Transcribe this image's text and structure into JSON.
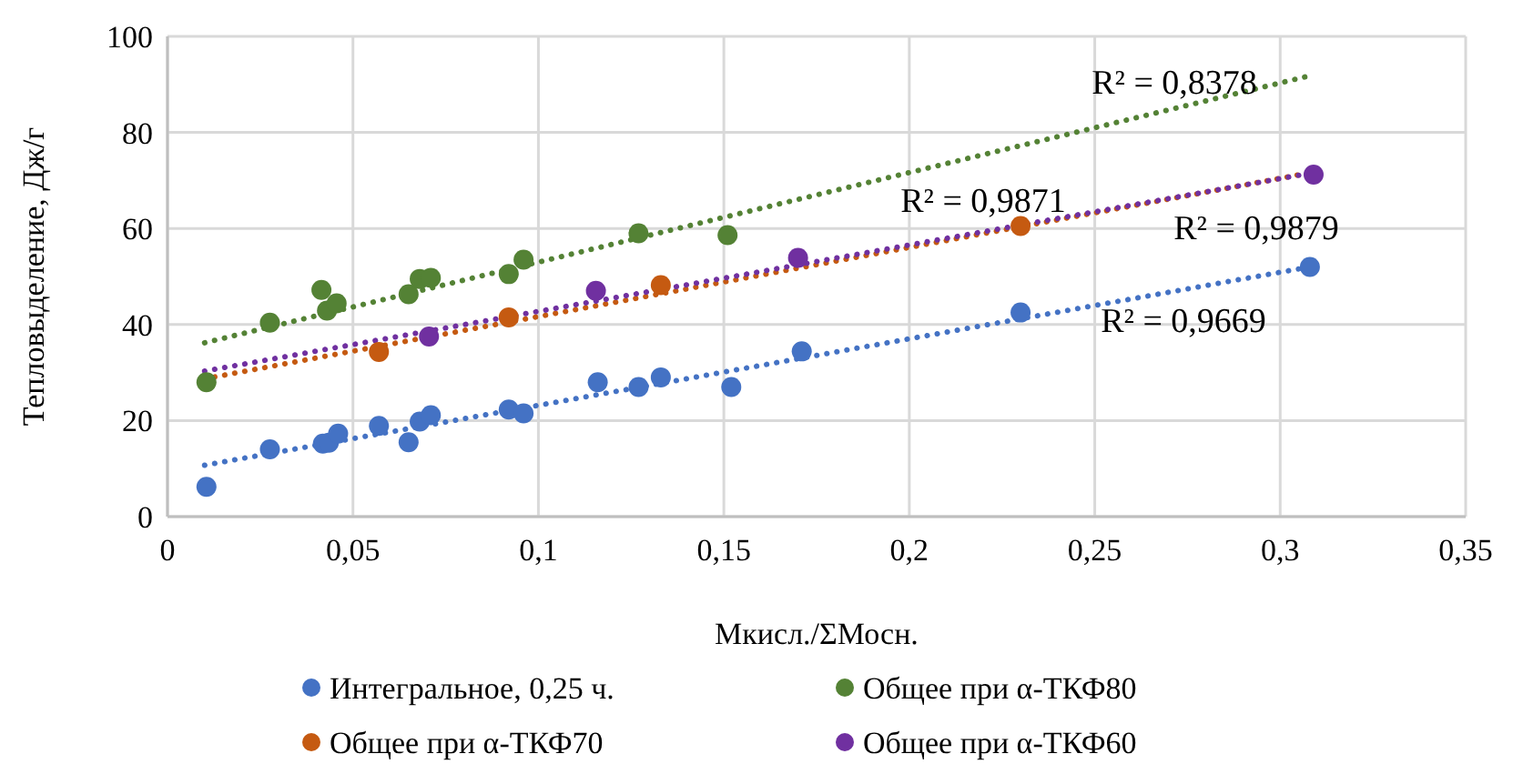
{
  "chart_data": {
    "type": "scatter",
    "xlabel": "Мкисл./ΣМосн.",
    "ylabel": "Тепловыделение, Дж/г",
    "xlim": [
      0,
      0.35
    ],
    "ylim": [
      0,
      100
    ],
    "xticks": [
      0,
      {
        "value": 0.05,
        "label": "0,05"
      },
      {
        "value": 0.1,
        "label": "0,1"
      },
      {
        "value": 0.15,
        "label": "0,15"
      },
      {
        "value": 0.2,
        "label": "0,2"
      },
      {
        "value": 0.25,
        "label": "0,25"
      },
      {
        "value": 0.3,
        "label": "0,3"
      },
      {
        "value": 0.35,
        "label": "0,35"
      }
    ],
    "yticks": [
      0,
      20,
      40,
      60,
      80,
      100
    ],
    "grid": true,
    "legend": "bottom",
    "marker": "circle",
    "series": [
      {
        "name": "Интегральное, 0,25 ч.",
        "color": "#4472c4",
        "x": [
          0.0105,
          0.0276,
          0.0419,
          0.0435,
          0.046,
          0.057,
          0.065,
          0.068,
          0.071,
          0.092,
          0.096,
          0.116,
          0.127,
          0.133,
          0.152,
          0.171,
          0.23,
          0.308
        ],
        "values": [
          6.2,
          14,
          15.2,
          15.4,
          17.3,
          18.9,
          15.5,
          19.8,
          21.1,
          22.3,
          21.5,
          28,
          27,
          29,
          27,
          34.4,
          42.5,
          52
        ]
      },
      {
        "name": "Общее при α-ТКФ80",
        "color": "#548235",
        "x": [
          0.0105,
          0.0276,
          0.0415,
          0.043,
          0.0456,
          0.065,
          0.068,
          0.071,
          0.092,
          0.096,
          0.127,
          0.151
        ],
        "values": [
          28,
          40.4,
          47.2,
          42.9,
          44.4,
          46.3,
          49.5,
          49.7,
          50.5,
          53.5,
          59,
          58.6
        ]
      },
      {
        "name": "Общее при α-ТКФ70",
        "color": "#c55a11",
        "x": [
          0.057,
          0.092,
          0.133,
          0.23
        ],
        "values": [
          34.3,
          41.5,
          48.2,
          60.5
        ]
      },
      {
        "name": "Общее при α-ТКФ60",
        "color": "#7030a0",
        "x": [
          0.0705,
          0.1155,
          0.17,
          0.309
        ],
        "values": [
          37.5,
          47,
          53.9,
          71.2
        ]
      },
      {
        "type": "line",
        "line_style": "dotted",
        "marker": "none",
        "color": "#4472c4",
        "x": [
          0.01,
          0.308
        ],
        "values": [
          10.7,
          52
        ]
      },
      {
        "type": "line",
        "line_style": "dotted",
        "marker": "none",
        "color": "#548235",
        "x": [
          0.01,
          0.308
        ],
        "values": [
          36.2,
          91.8
        ]
      },
      {
        "type": "line",
        "line_style": "dotted",
        "marker": "none",
        "color": "#c55a11",
        "x": [
          0.01,
          0.308
        ],
        "values": [
          28.7,
          71.6
        ]
      },
      {
        "type": "line",
        "line_style": "dotted",
        "marker": "none",
        "color": "#7030a0",
        "x": [
          0.01,
          0.308
        ],
        "values": [
          30.3,
          71.5
        ]
      }
    ],
    "annotations": [
      "R² = 0,8378",
      "R² = 0,9871",
      "R² = 0,9879",
      "R² = 0,9669"
    ]
  }
}
